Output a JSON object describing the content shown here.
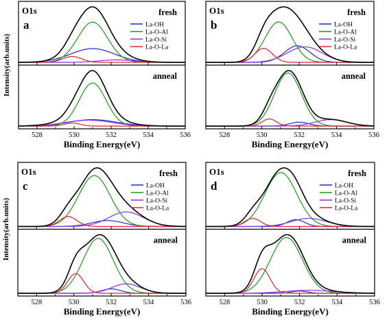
{
  "figure": {
    "y_axis_label": "Intensity(arb.units)",
    "x_axis_label": "Binding Energy(eV)",
    "region_label": "O1s",
    "top_label": "fresh",
    "bottom_label": "anneal",
    "x_ticks": [
      "528",
      "530",
      "532",
      "534",
      "536"
    ],
    "legend": [
      {
        "name": "La-OH",
        "color": "#1c2ccf"
      },
      {
        "name": "La-O-Al",
        "color": "#189a18"
      },
      {
        "name": "La-O-Si",
        "color": "#8a2be2"
      },
      {
        "name": "La-O-La",
        "color": "#e0202c"
      }
    ],
    "envelope_color": "#000000"
  },
  "chart_data": [
    {
      "type": "line",
      "panel": "a",
      "xlabel": "Binding Energy(eV)",
      "ylabel": "Intensity(arb.units)",
      "xlim": [
        527,
        536
      ],
      "x_reversed": false,
      "subplots": [
        {
          "label": "fresh",
          "components": [
            {
              "name": "La-OH",
              "center": 531.0,
              "height": 0.28,
              "fwhm": 2.8
            },
            {
              "name": "La-O-Al",
              "center": 531.0,
              "height": 0.82,
              "fwhm": 1.9
            },
            {
              "name": "La-O-Si",
              "center": 532.3,
              "height": 0.05,
              "fwhm": 2.2
            },
            {
              "name": "La-O-La",
              "center": 529.9,
              "height": 0.12,
              "fwhm": 1.2
            }
          ],
          "envelope_peak": {
            "x": 530.9,
            "y": 1.0
          }
        },
        {
          "label": "anneal",
          "components": [
            {
              "name": "La-OH",
              "center": 531.0,
              "height": 0.13,
              "fwhm": 3.0
            },
            {
              "name": "La-O-Al",
              "center": 531.0,
              "height": 0.87,
              "fwhm": 1.7
            },
            {
              "name": "La-O-Si",
              "center": 530.8,
              "height": 0.12,
              "fwhm": 3.0
            },
            {
              "name": "La-O-La",
              "center": 529.9,
              "height": 0.06,
              "fwhm": 1.0
            }
          ],
          "envelope_peak": {
            "x": 531.0,
            "y": 1.0
          }
        }
      ]
    },
    {
      "type": "line",
      "panel": "b",
      "xlabel": "Binding Energy(eV)",
      "ylabel": "",
      "xlim": [
        527,
        536
      ],
      "subplots": [
        {
          "label": "fresh",
          "components": [
            {
              "name": "La-OH",
              "center": 531.9,
              "height": 0.32,
              "fwhm": 1.6
            },
            {
              "name": "La-O-Al",
              "center": 530.9,
              "height": 0.78,
              "fwhm": 1.7
            },
            {
              "name": "La-O-Si",
              "center": 532.3,
              "height": 0.3,
              "fwhm": 2.2
            },
            {
              "name": "La-O-La",
              "center": 530.1,
              "height": 0.27,
              "fwhm": 1.1
            }
          ],
          "envelope_peak": {
            "x": 531.1,
            "y": 1.0
          }
        },
        {
          "label": "anneal",
          "components": [
            {
              "name": "La-OH",
              "center": 532.0,
              "height": 0.06,
              "fwhm": 1.2
            },
            {
              "name": "La-O-Al",
              "center": 531.4,
              "height": 0.82,
              "fwhm": 1.7
            },
            {
              "name": "La-O-Si",
              "center": 533.7,
              "height": 0.1,
              "fwhm": 2.0
            },
            {
              "name": "La-O-La",
              "center": 530.4,
              "height": 0.11,
              "fwhm": 0.9
            }
          ],
          "envelope_peak": {
            "x": 531.5,
            "y": 1.0
          }
        }
      ]
    },
    {
      "type": "line",
      "panel": "c",
      "xlabel": "Binding Energy(eV)",
      "ylabel": "Intensity(arb.units)",
      "xlim": [
        527,
        536
      ],
      "subplots": [
        {
          "label": "fresh",
          "components": [
            {
              "name": "La-OH",
              "center": 531.8,
              "height": 0.09,
              "fwhm": 2.0
            },
            {
              "name": "La-O-Al",
              "center": 531.1,
              "height": 0.77,
              "fwhm": 2.0
            },
            {
              "name": "La-O-Si",
              "center": 532.8,
              "height": 0.22,
              "fwhm": 2.2
            },
            {
              "name": "La-O-La",
              "center": 529.7,
              "height": 0.15,
              "fwhm": 1.1
            }
          ],
          "envelope_peak": {
            "x": 531.1,
            "y": 1.0
          }
        },
        {
          "label": "anneal",
          "components": [
            {
              "name": "La-OH",
              "center": 532.0,
              "height": 0.06,
              "fwhm": 1.2
            },
            {
              "name": "La-O-Al",
              "center": 531.3,
              "height": 0.75,
              "fwhm": 1.9
            },
            {
              "name": "La-O-Si",
              "center": 532.8,
              "height": 0.13,
              "fwhm": 1.8
            },
            {
              "name": "La-O-La",
              "center": 530.1,
              "height": 0.27,
              "fwhm": 1.0
            }
          ],
          "envelope_peak": {
            "x": 531.2,
            "y": 1.0
          }
        }
      ]
    },
    {
      "type": "line",
      "panel": "d",
      "xlabel": "Binding Energy(eV)",
      "ylabel": "",
      "xlim": [
        527,
        536
      ],
      "subplots": [
        {
          "label": "fresh",
          "components": [
            {
              "name": "La-OH",
              "center": 531.8,
              "height": 0.11,
              "fwhm": 1.1
            },
            {
              "name": "La-O-Al",
              "center": 531.0,
              "height": 0.87,
              "fwhm": 2.0
            },
            {
              "name": "La-O-Si",
              "center": 532.5,
              "height": 0.13,
              "fwhm": 2.2
            },
            {
              "name": "La-O-La",
              "center": 529.5,
              "height": 0.13,
              "fwhm": 1.0
            }
          ],
          "envelope_peak": {
            "x": 531.1,
            "y": 1.0
          }
        },
        {
          "label": "anneal",
          "components": [
            {
              "name": "La-OH",
              "center": 532.0,
              "height": 0.03,
              "fwhm": 1.0
            },
            {
              "name": "La-O-Al",
              "center": 531.3,
              "height": 0.75,
              "fwhm": 2.0
            },
            {
              "name": "La-O-Si",
              "center": 532.5,
              "height": 0.04,
              "fwhm": 3.0
            },
            {
              "name": "La-O-La",
              "center": 530.0,
              "height": 0.33,
              "fwhm": 1.0
            }
          ],
          "envelope_peak": {
            "x": 531.2,
            "y": 1.0
          }
        }
      ]
    }
  ]
}
